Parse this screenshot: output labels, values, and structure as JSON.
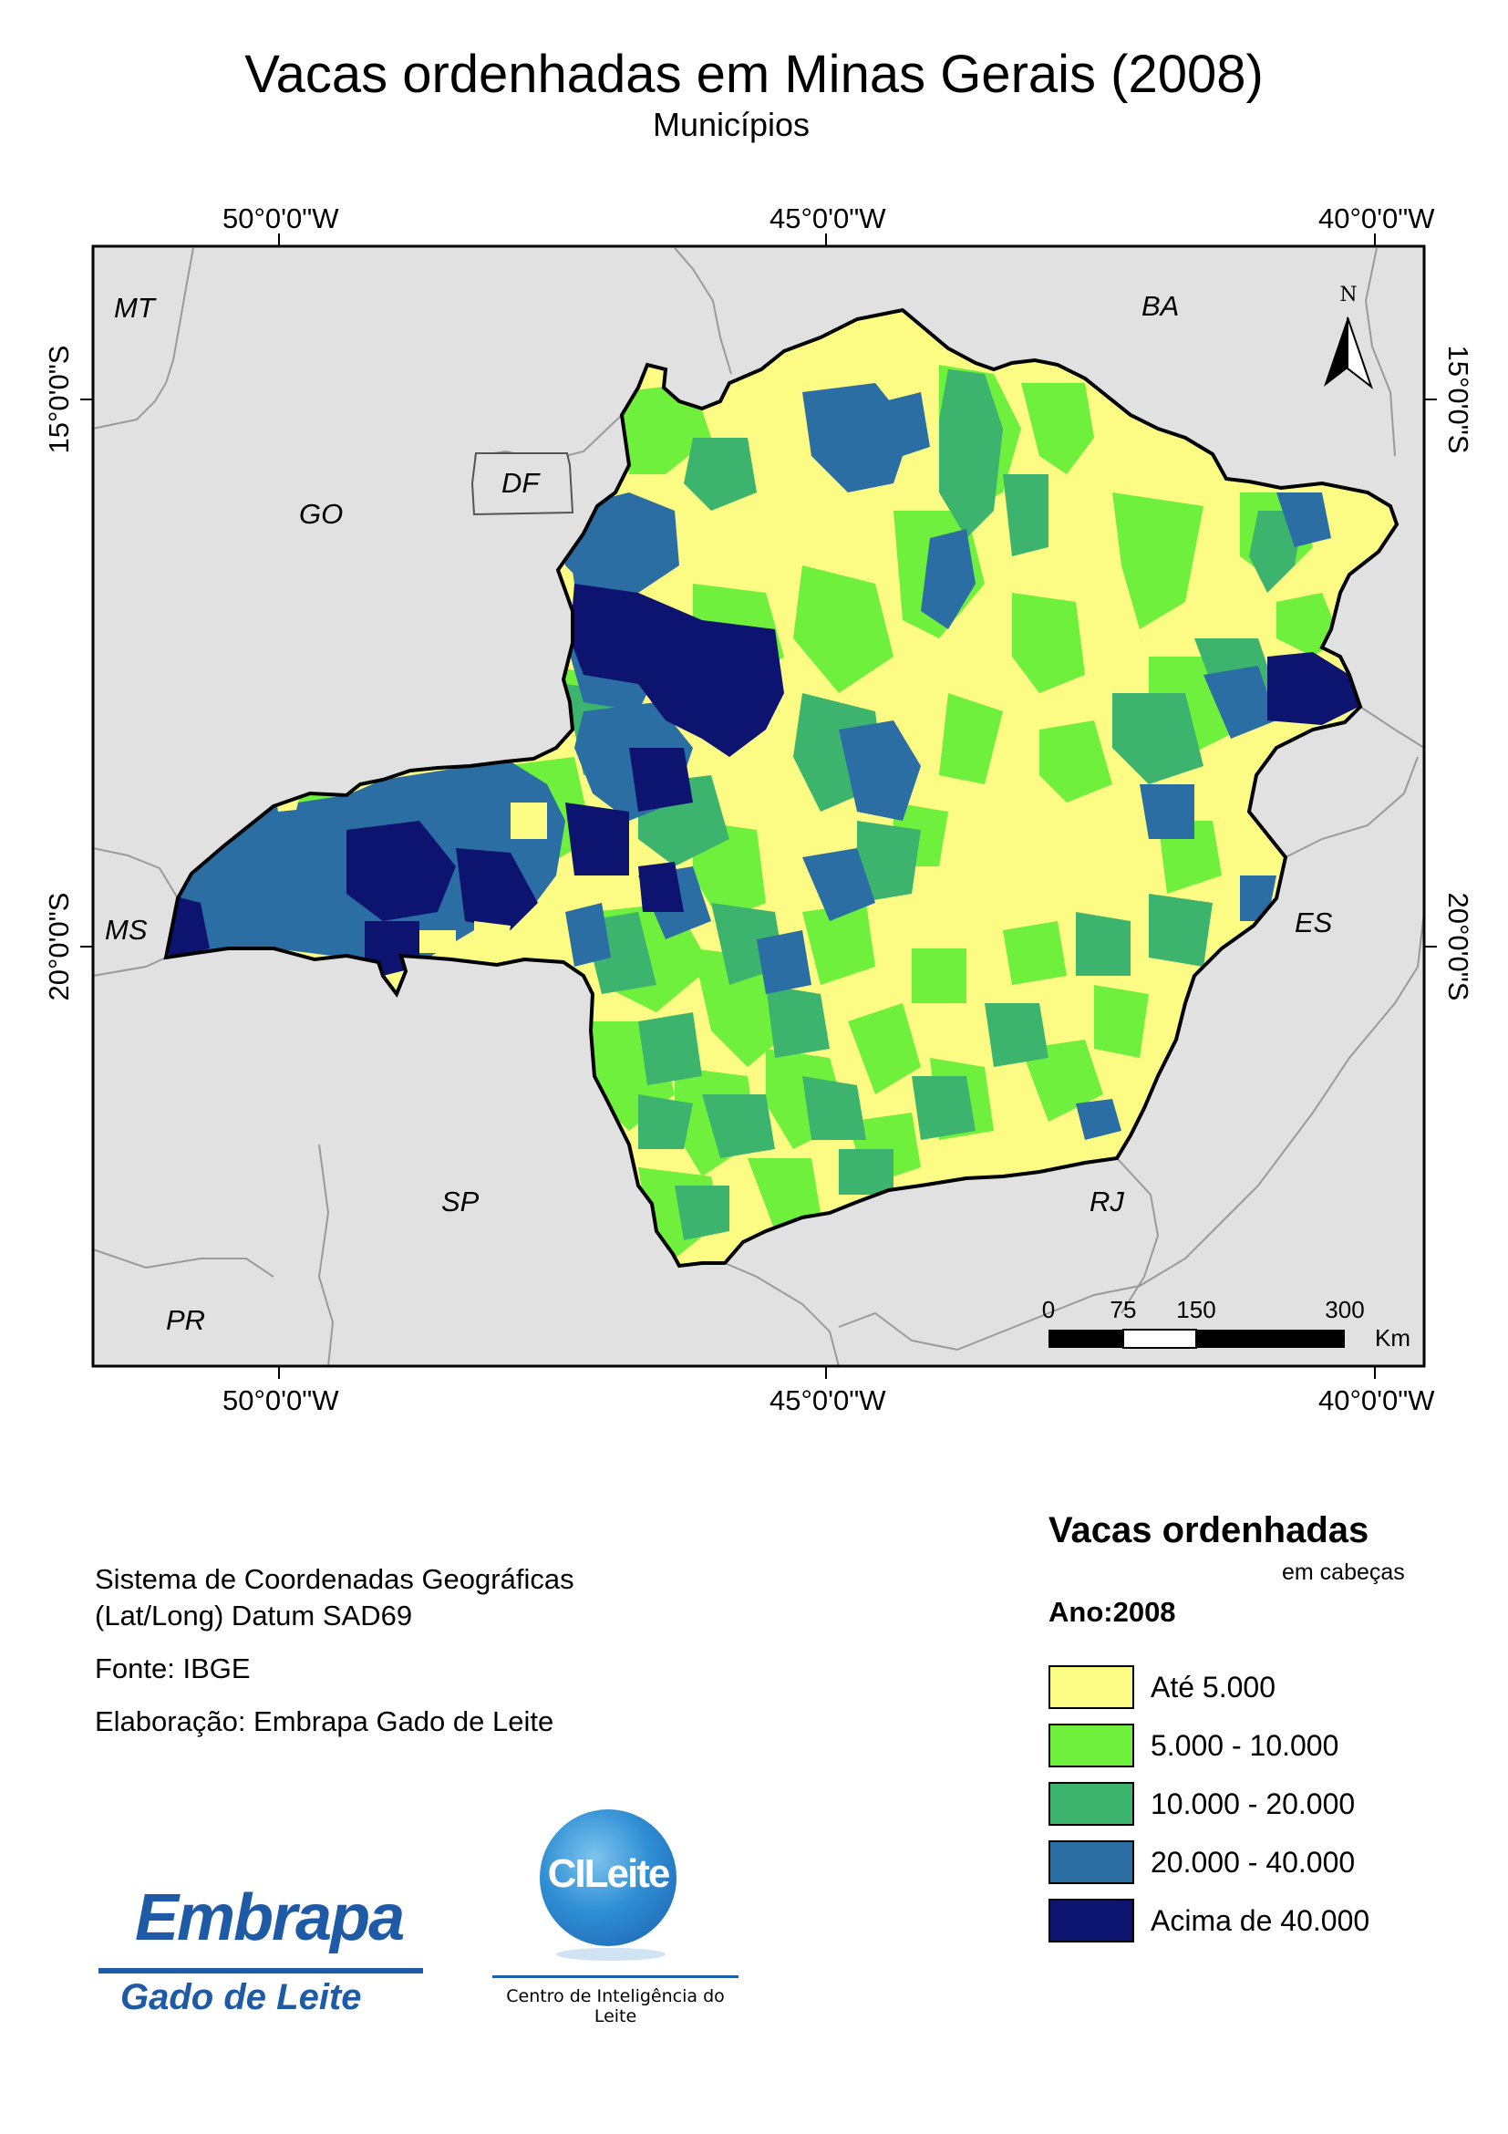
{
  "title": "Vacas ordenhadas em Minas Gerais (2008)",
  "subtitle": "Municípios",
  "graticule": {
    "top": [
      "50°0'0\"W",
      "45°0'0\"W",
      "40°0'0\"W"
    ],
    "bottom": [
      "50°0'0\"W",
      "45°0'0\"W",
      "40°0'0\"W"
    ],
    "left": [
      "15°0'0\"S",
      "20°0'0\"S"
    ],
    "right": [
      "15°0'0\"S",
      "20°0'0\"S"
    ]
  },
  "states": {
    "mt": "MT",
    "go": "GO",
    "df": "DF",
    "ba": "BA",
    "ms": "MS",
    "es": "ES",
    "sp": "SP",
    "rj": "RJ",
    "pr": "PR"
  },
  "north_arrow": "N",
  "scale_bar": {
    "ticks": [
      "0",
      "75",
      "150",
      "300"
    ],
    "unit": "Km"
  },
  "info": {
    "line1": "Sistema de Coordenadas Geográficas",
    "line2": "(Lat/Long) Datum SAD69",
    "source": "Fonte: IBGE",
    "author": "Elaboração: Embrapa Gado de Leite"
  },
  "legend": {
    "title": "Vacas ordenhadas",
    "unit": "em cabeças",
    "year": "Ano:2008",
    "classes": [
      {
        "label": "Até 5.000",
        "color": "#fcfc84"
      },
      {
        "label": "5.000 - 10.000",
        "color": "#6ef03c"
      },
      {
        "label": "10.000 - 20.000",
        "color": "#3cb46e"
      },
      {
        "label": "20.000 - 40.000",
        "color": "#2a6ea4"
      },
      {
        "label": "Acima de 40.000",
        "color": "#0c1470"
      }
    ]
  },
  "logos": {
    "embrapa_word": "Embrapa",
    "embrapa_sub": "Gado de Leite",
    "cileite_word": "CILeite",
    "cileite_sub": "Centro de Inteligência do Leite"
  }
}
